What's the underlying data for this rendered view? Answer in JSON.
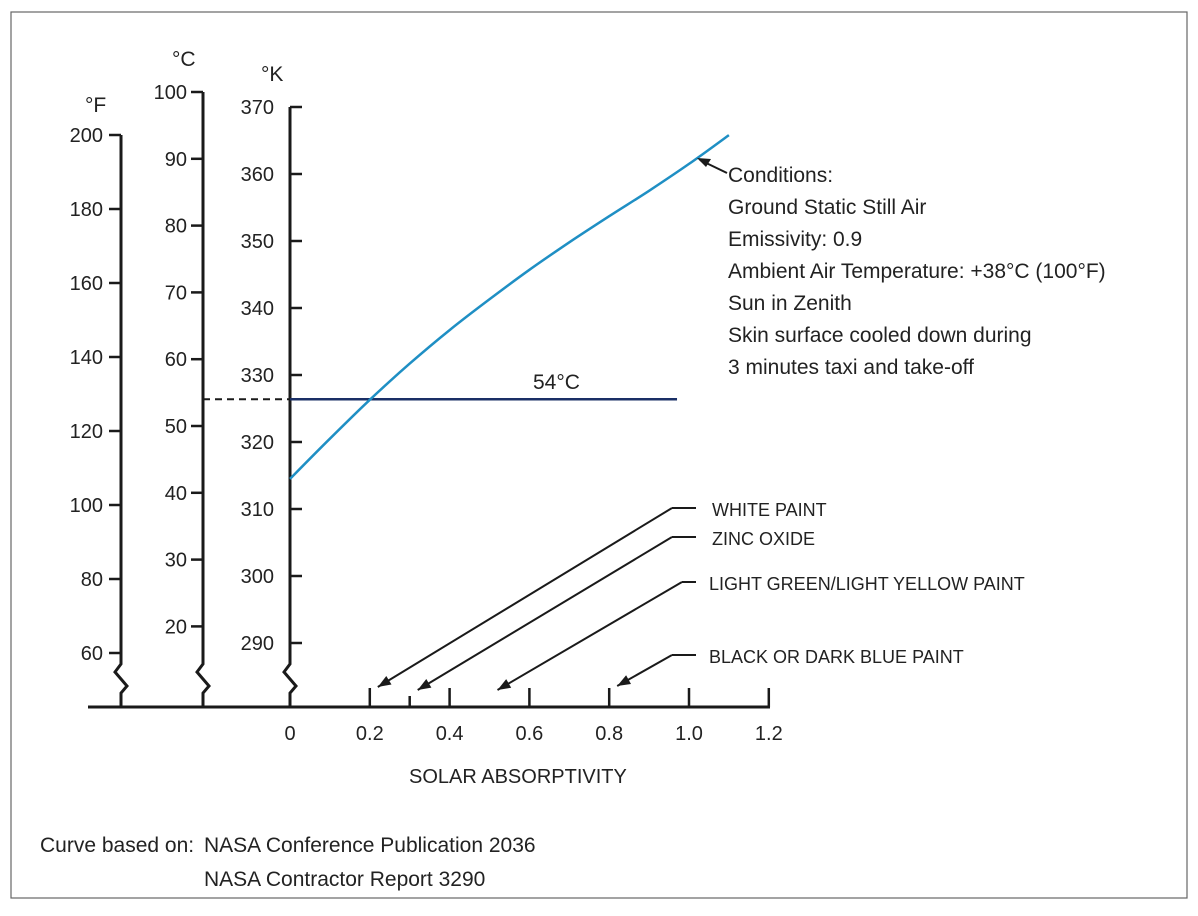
{
  "chart_data": {
    "type": "line",
    "xlabel": "SOLAR ABSORPTIVITY",
    "x_ticks": [
      "0",
      "0.2",
      "0.4",
      "0.6",
      "0.8",
      "1.0",
      "1.2"
    ],
    "xlim": [
      0,
      1.2
    ],
    "axes": [
      {
        "unit": "°F",
        "ticks": [
          "60",
          "80",
          "100",
          "120",
          "140",
          "160",
          "180",
          "200"
        ],
        "range": [
          60,
          200
        ]
      },
      {
        "unit": "°C",
        "ticks": [
          "20",
          "30",
          "40",
          "50",
          "60",
          "70",
          "80",
          "90",
          "100"
        ],
        "range": [
          20,
          100
        ]
      },
      {
        "unit": "°K",
        "ticks": [
          "290",
          "300",
          "310",
          "320",
          "330",
          "340",
          "350",
          "360",
          "370"
        ],
        "range": [
          290,
          370
        ]
      }
    ],
    "series": [
      {
        "color": "#1f8fc4",
        "x": [
          0,
          0.1,
          0.2,
          0.3,
          0.4,
          0.5,
          0.6,
          0.7,
          0.8,
          0.9,
          1.0,
          1.1
        ],
        "y_kelvin": [
          314.5,
          320.5,
          326.3,
          331.7,
          336.7,
          341.3,
          345.7,
          349.8,
          353.7,
          357.5,
          361.5,
          365.8
        ]
      }
    ],
    "reference_line": {
      "label": "54°C",
      "value_celsius": 54,
      "x_end": 0.97,
      "color": "#1a2f66"
    },
    "conditions": {
      "title": "Conditions:",
      "lines": [
        "Ground Static Still Air",
        "Emissivity: 0.9",
        "Ambient Air Temperature: +38°C (100°F)",
        "Sun in Zenith",
        "Skin surface cooled down during",
        "3 minutes taxi and take-off"
      ]
    },
    "paint_annotations": [
      {
        "label": "WHITE PAINT",
        "absorptivity": 0.2
      },
      {
        "label": "ZINC OXIDE",
        "absorptivity": 0.3
      },
      {
        "label": "LIGHT GREEN/LIGHT YELLOW PAINT",
        "absorptivity": 0.5
      },
      {
        "label": "BLACK OR DARK BLUE PAINT",
        "absorptivity": 0.8
      }
    ]
  },
  "credits": {
    "prefix": "Curve based on:",
    "line1": "NASA Conference Publication 2036",
    "line2": "NASA Contractor Report 3290"
  }
}
